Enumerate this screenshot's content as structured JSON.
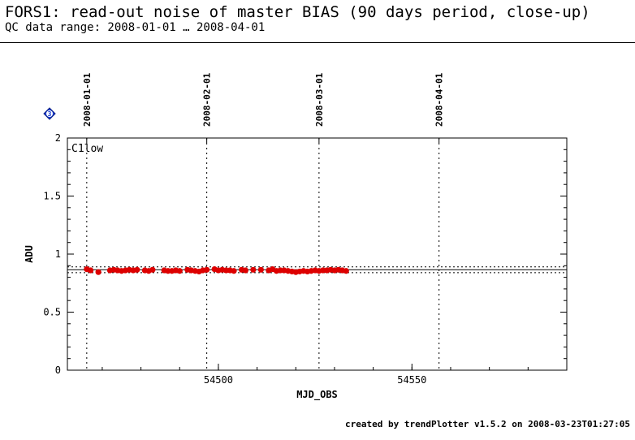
{
  "page": {
    "title": "FORS1: read-out noise of master BIAS (90 days period, close-up)",
    "subtitle": "QC data range: 2008-01-01 … 2008-04-01",
    "footer": "created by trendPlotter v1.5.2 on 2008-03-23T01:27:05",
    "marker_label": "3"
  },
  "chart_data": {
    "type": "scatter",
    "title": "FORS1: read-out noise of master BIAS (90 days period, close-up)",
    "xlabel": "MJD_OBS",
    "ylabel": "ADU",
    "panel_label": "C1low",
    "xlim": [
      54461,
      54590
    ],
    "ylim": [
      0,
      2
    ],
    "x_ticks": [
      54500,
      54550
    ],
    "y_ticks": [
      0,
      0.5,
      1,
      1.5,
      2
    ],
    "y_tick_labels": [
      "0",
      "0.5",
      "1",
      "1.5",
      "2"
    ],
    "date_markers": [
      {
        "label": "2008-01-01",
        "x": 54466
      },
      {
        "label": "2008-02-01",
        "x": 54497
      },
      {
        "label": "2008-03-01",
        "x": 54526
      },
      {
        "label": "2008-04-01",
        "x": 54557
      }
    ],
    "reference_lines": {
      "mean": 0.865,
      "upper": 0.89,
      "lower": 0.84
    },
    "point_color": "#dd0000",
    "series": [
      {
        "x": [
          54466,
          54467,
          54469,
          54472,
          54473,
          54474,
          54475,
          54476,
          54477,
          54478,
          54479,
          54481,
          54482,
          54483,
          54486,
          54487,
          54488,
          54489,
          54490,
          54492,
          54493,
          54494,
          54495,
          54496,
          54497,
          54499,
          54500,
          54501,
          54502,
          54503,
          54504,
          54506,
          54507,
          54509,
          54511,
          54513,
          54514,
          54515,
          54516,
          54517,
          54518,
          54519,
          54520,
          54521,
          54522,
          54523,
          54524,
          54525,
          54526,
          54527,
          54528,
          54529,
          54530,
          54531,
          54532,
          54533
        ],
        "y": [
          0.87,
          0.86,
          0.845,
          0.86,
          0.865,
          0.86,
          0.855,
          0.86,
          0.865,
          0.86,
          0.865,
          0.86,
          0.855,
          0.865,
          0.86,
          0.855,
          0.855,
          0.86,
          0.855,
          0.865,
          0.86,
          0.855,
          0.85,
          0.86,
          0.865,
          0.87,
          0.86,
          0.865,
          0.86,
          0.86,
          0.855,
          0.865,
          0.86,
          0.865,
          0.865,
          0.86,
          0.87,
          0.855,
          0.86,
          0.86,
          0.855,
          0.85,
          0.845,
          0.85,
          0.855,
          0.85,
          0.855,
          0.86,
          0.855,
          0.86,
          0.86,
          0.865,
          0.86,
          0.865,
          0.86,
          0.855
        ]
      }
    ]
  }
}
